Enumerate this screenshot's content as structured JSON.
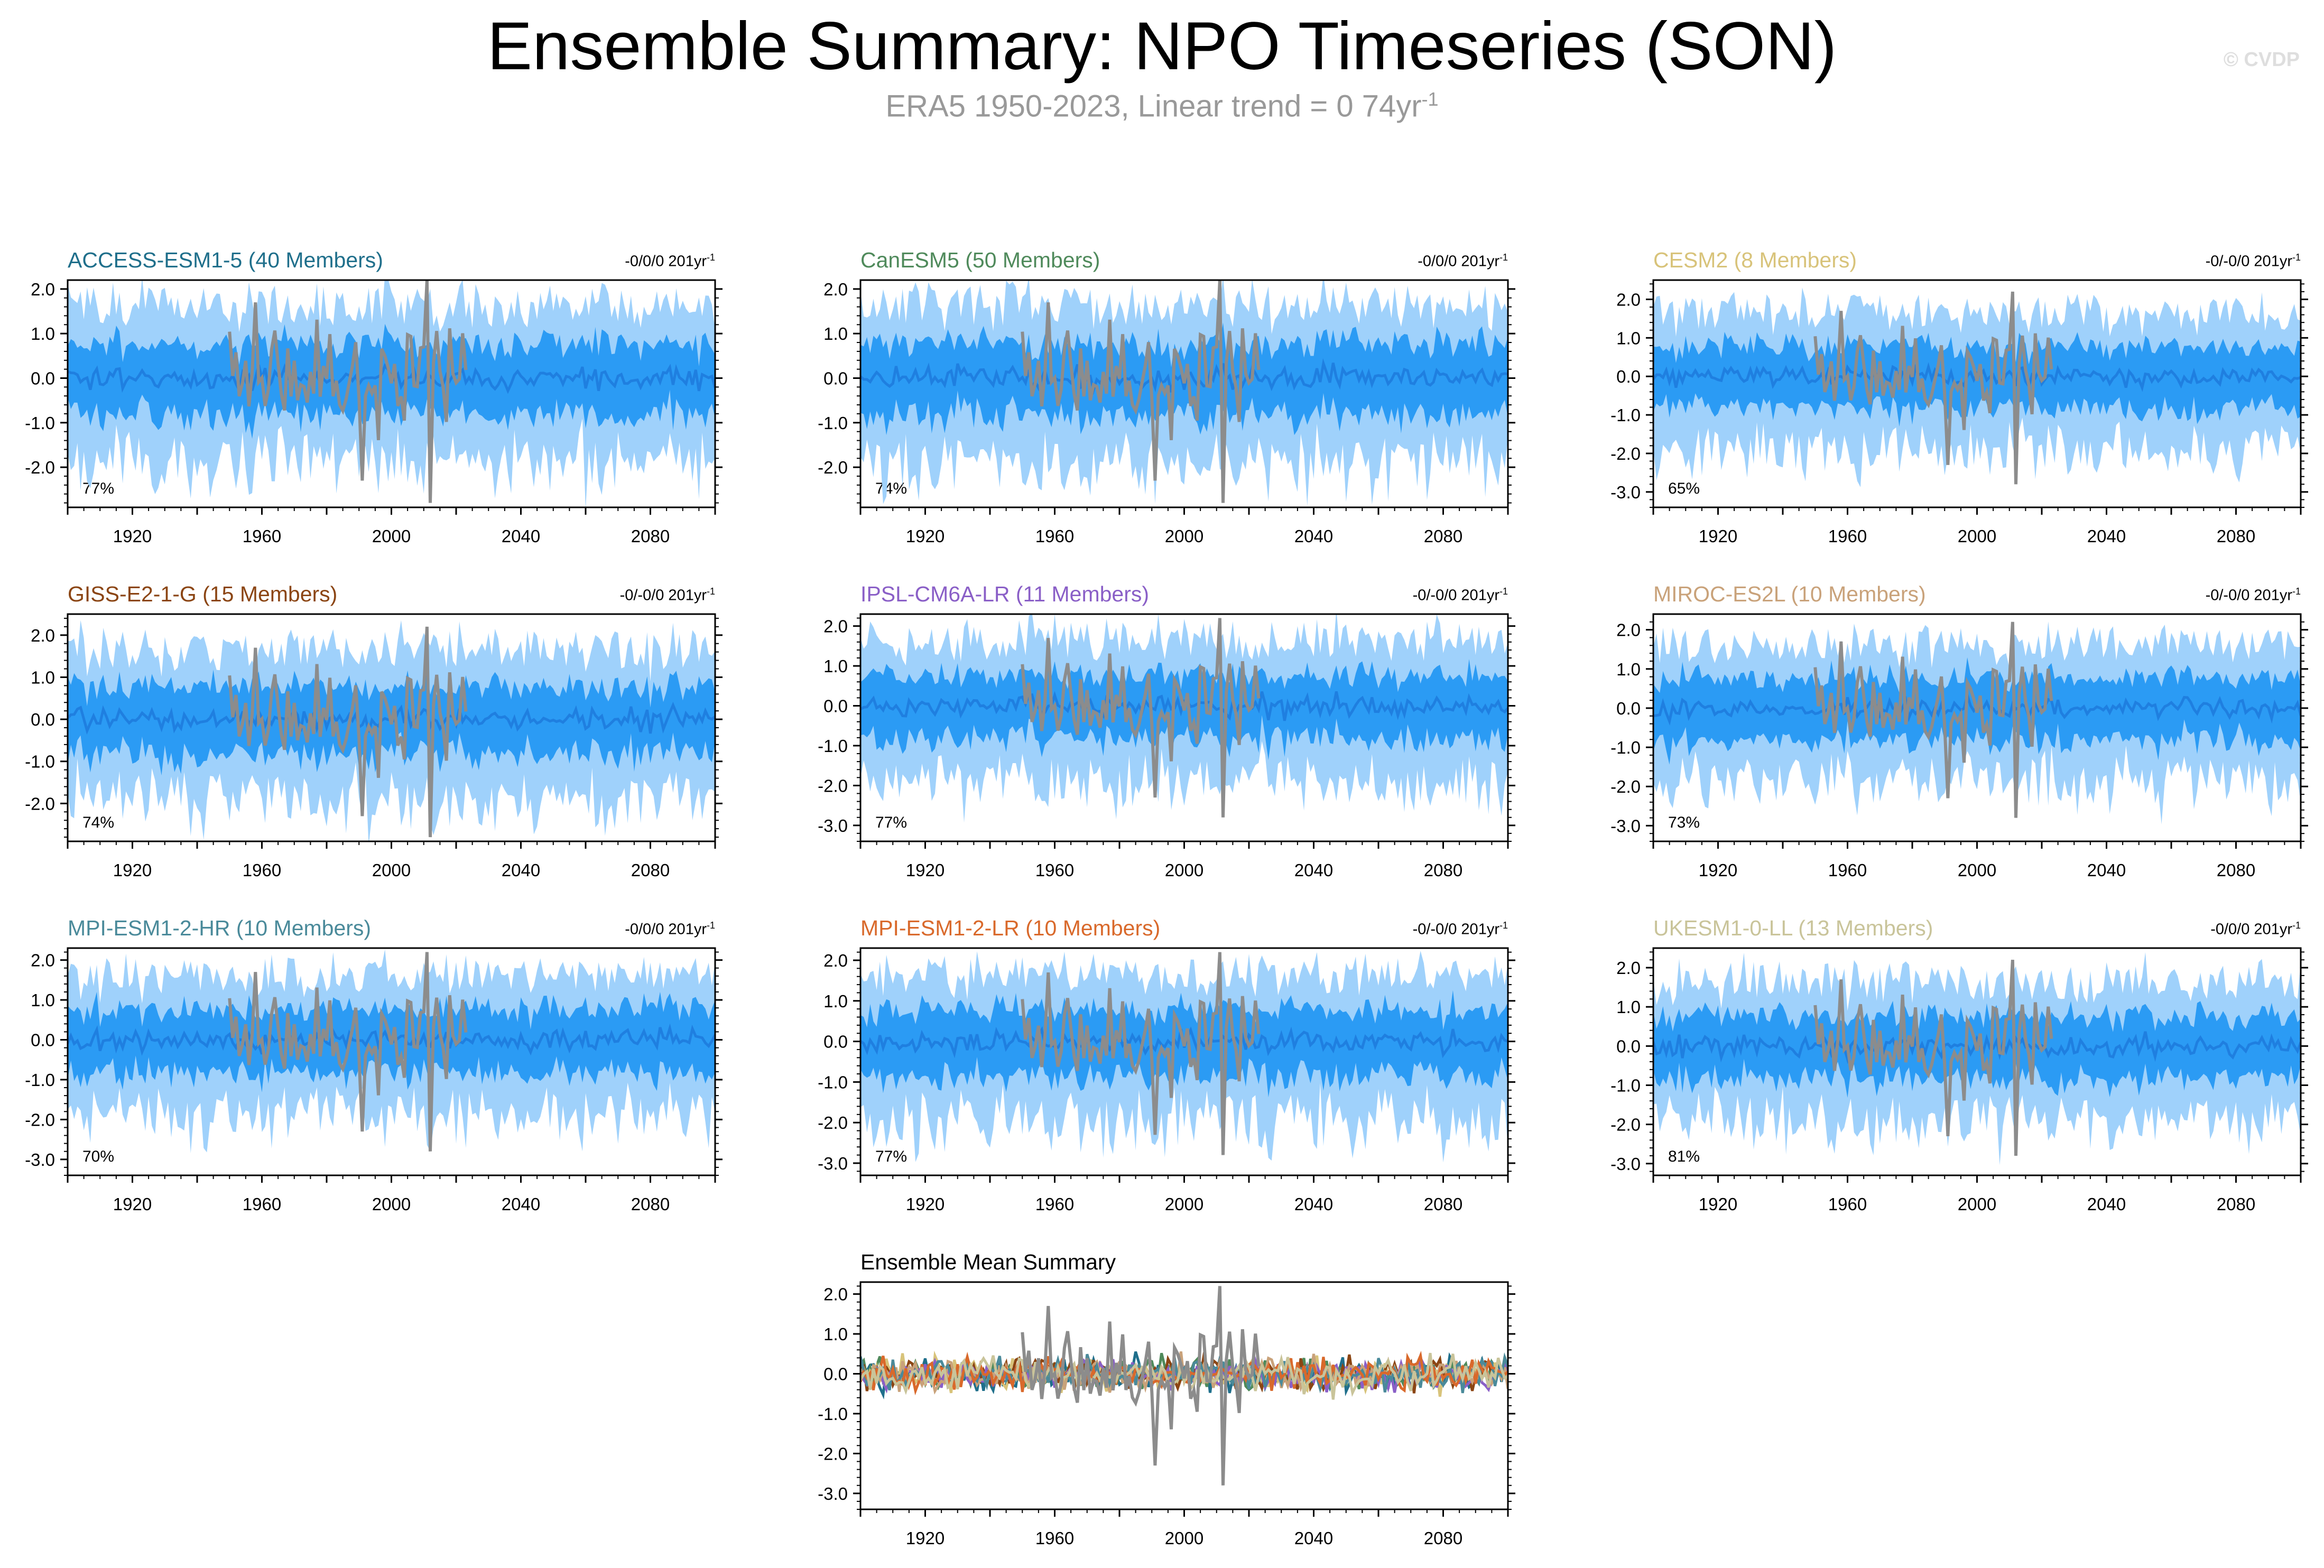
{
  "header": {
    "title": "Ensemble Summary: NPO Timeseries (SON)",
    "subtitle": "ERA5 1950-2023, Linear trend = 0 74yr",
    "subtitle_unit_exponent": "-1",
    "watermark": "© CVDP"
  },
  "colors": {
    "outer_band": "#9fd1fb",
    "inner_band": "#2b9bf4",
    "ensemble_mean_line": "#1f7fe0",
    "observations": "#8c8c8c",
    "frame": "#000000"
  },
  "chart_data": [
    {
      "type": "area",
      "title": "ACCESS-ESM1-5 (40 Members)",
      "title_color": "#1f6f8b",
      "trend": "-0/0/0 201yr",
      "trend_exponent": "-1",
      "percent": "77%",
      "xlim": [
        1900,
        2100
      ],
      "ylim": [
        -2.9,
        2.2
      ],
      "yticks": [
        -2.0,
        -1.0,
        0.0,
        1.0,
        2.0
      ],
      "xticks": [
        1920,
        1960,
        2000,
        2040,
        2080
      ],
      "series": [
        {
          "name": "ensemble 10-90% range"
        },
        {
          "name": "ensemble 25-75% range"
        },
        {
          "name": "ensemble mean"
        },
        {
          "name": "ERA5 observations",
          "x": [
            1950,
            2023
          ]
        }
      ]
    },
    {
      "type": "area",
      "title": "CanESM5 (50 Members)",
      "title_color": "#4f8a5b",
      "trend": "-0/0/0 201yr",
      "trend_exponent": "-1",
      "percent": "74%",
      "xlim": [
        1900,
        2100
      ],
      "ylim": [
        -2.9,
        2.2
      ],
      "yticks": [
        -2.0,
        -1.0,
        0.0,
        1.0,
        2.0
      ],
      "xticks": [
        1920,
        1960,
        2000,
        2040,
        2080
      ],
      "series": [
        {
          "name": "ensemble 10-90% range"
        },
        {
          "name": "ensemble 25-75% range"
        },
        {
          "name": "ensemble mean"
        },
        {
          "name": "ERA5 observations",
          "x": [
            1950,
            2023
          ]
        }
      ]
    },
    {
      "type": "area",
      "title": "CESM2 (8 Members)",
      "title_color": "#d8c37a",
      "trend": "-0/-0/0 201yr",
      "trend_exponent": "-1",
      "percent": "65%",
      "xlim": [
        1900,
        2100
      ],
      "ylim": [
        -3.4,
        2.5
      ],
      "yticks": [
        -3.0,
        -2.0,
        -1.0,
        0.0,
        1.0,
        2.0
      ],
      "xticks": [
        1920,
        1960,
        2000,
        2040,
        2080
      ],
      "series": [
        {
          "name": "ensemble 10-90% range"
        },
        {
          "name": "ensemble 25-75% range"
        },
        {
          "name": "ensemble mean"
        },
        {
          "name": "ERA5 observations",
          "x": [
            1950,
            2023
          ]
        }
      ]
    },
    {
      "type": "area",
      "title": "GISS-E2-1-G (15 Members)",
      "title_color": "#8b4513",
      "trend": "-0/-0/0 201yr",
      "trend_exponent": "-1",
      "percent": "74%",
      "xlim": [
        1900,
        2100
      ],
      "ylim": [
        -2.9,
        2.5
      ],
      "yticks": [
        -2.0,
        -1.0,
        0.0,
        1.0,
        2.0
      ],
      "xticks": [
        1920,
        1960,
        2000,
        2040,
        2080
      ],
      "series": [
        {
          "name": "ensemble 10-90% range"
        },
        {
          "name": "ensemble 25-75% range"
        },
        {
          "name": "ensemble mean"
        },
        {
          "name": "ERA5 observations",
          "x": [
            1950,
            2023
          ]
        }
      ]
    },
    {
      "type": "area",
      "title": "IPSL-CM6A-LR (11 Members)",
      "title_color": "#8a5fc7",
      "trend": "-0/-0/0 201yr",
      "trend_exponent": "-1",
      "percent": "77%",
      "xlim": [
        1900,
        2100
      ],
      "ylim": [
        -3.4,
        2.3
      ],
      "yticks": [
        -3.0,
        -2.0,
        -1.0,
        0.0,
        1.0,
        2.0
      ],
      "xticks": [
        1920,
        1960,
        2000,
        2040,
        2080
      ],
      "series": [
        {
          "name": "ensemble 10-90% range"
        },
        {
          "name": "ensemble 25-75% range"
        },
        {
          "name": "ensemble mean"
        },
        {
          "name": "ERA5 observations",
          "x": [
            1950,
            2023
          ]
        }
      ]
    },
    {
      "type": "area",
      "title": "MIROC-ES2L (10 Members)",
      "title_color": "#c9a27a",
      "trend": "-0/-0/0 201yr",
      "trend_exponent": "-1",
      "percent": "73%",
      "xlim": [
        1900,
        2100
      ],
      "ylim": [
        -3.4,
        2.4
      ],
      "yticks": [
        -3.0,
        -2.0,
        -1.0,
        0.0,
        1.0,
        2.0
      ],
      "xticks": [
        1920,
        1960,
        2000,
        2040,
        2080
      ],
      "series": [
        {
          "name": "ensemble 10-90% range"
        },
        {
          "name": "ensemble 25-75% range"
        },
        {
          "name": "ensemble mean"
        },
        {
          "name": "ERA5 observations",
          "x": [
            1950,
            2023
          ]
        }
      ]
    },
    {
      "type": "area",
      "title": "MPI-ESM1-2-HR (10 Members)",
      "title_color": "#4a8a9a",
      "trend": "-0/0/0 201yr",
      "trend_exponent": "-1",
      "percent": "70%",
      "xlim": [
        1900,
        2100
      ],
      "ylim": [
        -3.4,
        2.3
      ],
      "yticks": [
        -3.0,
        -2.0,
        -1.0,
        0.0,
        1.0,
        2.0
      ],
      "xticks": [
        1920,
        1960,
        2000,
        2040,
        2080
      ],
      "series": [
        {
          "name": "ensemble 10-90% range"
        },
        {
          "name": "ensemble 25-75% range"
        },
        {
          "name": "ensemble mean"
        },
        {
          "name": "ERA5 observations",
          "x": [
            1950,
            2023
          ]
        }
      ]
    },
    {
      "type": "area",
      "title": "MPI-ESM1-2-LR (10 Members)",
      "title_color": "#d9692b",
      "trend": "-0/-0/0 201yr",
      "trend_exponent": "-1",
      "percent": "77%",
      "xlim": [
        1900,
        2100
      ],
      "ylim": [
        -3.3,
        2.3
      ],
      "yticks": [
        -3.0,
        -2.0,
        -1.0,
        0.0,
        1.0,
        2.0
      ],
      "xticks": [
        1920,
        1960,
        2000,
        2040,
        2080
      ],
      "series": [
        {
          "name": "ensemble 10-90% range"
        },
        {
          "name": "ensemble 25-75% range"
        },
        {
          "name": "ensemble mean"
        },
        {
          "name": "ERA5 observations",
          "x": [
            1950,
            2023
          ]
        }
      ]
    },
    {
      "type": "area",
      "title": "UKESM1-0-LL (13 Members)",
      "title_color": "#c9c49a",
      "trend": "-0/0/0 201yr",
      "trend_exponent": "-1",
      "percent": "81%",
      "xlim": [
        1900,
        2100
      ],
      "ylim": [
        -3.3,
        2.5
      ],
      "yticks": [
        -3.0,
        -2.0,
        -1.0,
        0.0,
        1.0,
        2.0
      ],
      "xticks": [
        1920,
        1960,
        2000,
        2040,
        2080
      ],
      "series": [
        {
          "name": "ensemble 10-90% range"
        },
        {
          "name": "ensemble 25-75% range"
        },
        {
          "name": "ensemble mean"
        },
        {
          "name": "ERA5 observations",
          "x": [
            1950,
            2023
          ]
        }
      ]
    },
    {
      "type": "line",
      "title": "Ensemble Mean Summary",
      "title_color": "#000000",
      "xlim": [
        1900,
        2100
      ],
      "ylim": [
        -3.4,
        2.3
      ],
      "yticks": [
        -3.0,
        -2.0,
        -1.0,
        0.0,
        1.0,
        2.0
      ],
      "xticks": [
        1920,
        1960,
        2000,
        2040,
        2080
      ],
      "series": [
        {
          "name": "ERA5 observations",
          "color": "#8c8c8c",
          "x": [
            1950,
            2023
          ]
        },
        {
          "name": "ACCESS-ESM1-5",
          "color": "#1f6f8b"
        },
        {
          "name": "CanESM5",
          "color": "#4f8a5b"
        },
        {
          "name": "CESM2",
          "color": "#d8c37a"
        },
        {
          "name": "GISS-E2-1-G",
          "color": "#8b4513"
        },
        {
          "name": "IPSL-CM6A-LR",
          "color": "#8a5fc7"
        },
        {
          "name": "MIROC-ES2L",
          "color": "#c9a27a"
        },
        {
          "name": "MPI-ESM1-2-HR",
          "color": "#4a8a9a"
        },
        {
          "name": "MPI-ESM1-2-LR",
          "color": "#d9692b"
        },
        {
          "name": "UKESM1-0-LL",
          "color": "#c9c49a"
        }
      ]
    }
  ]
}
